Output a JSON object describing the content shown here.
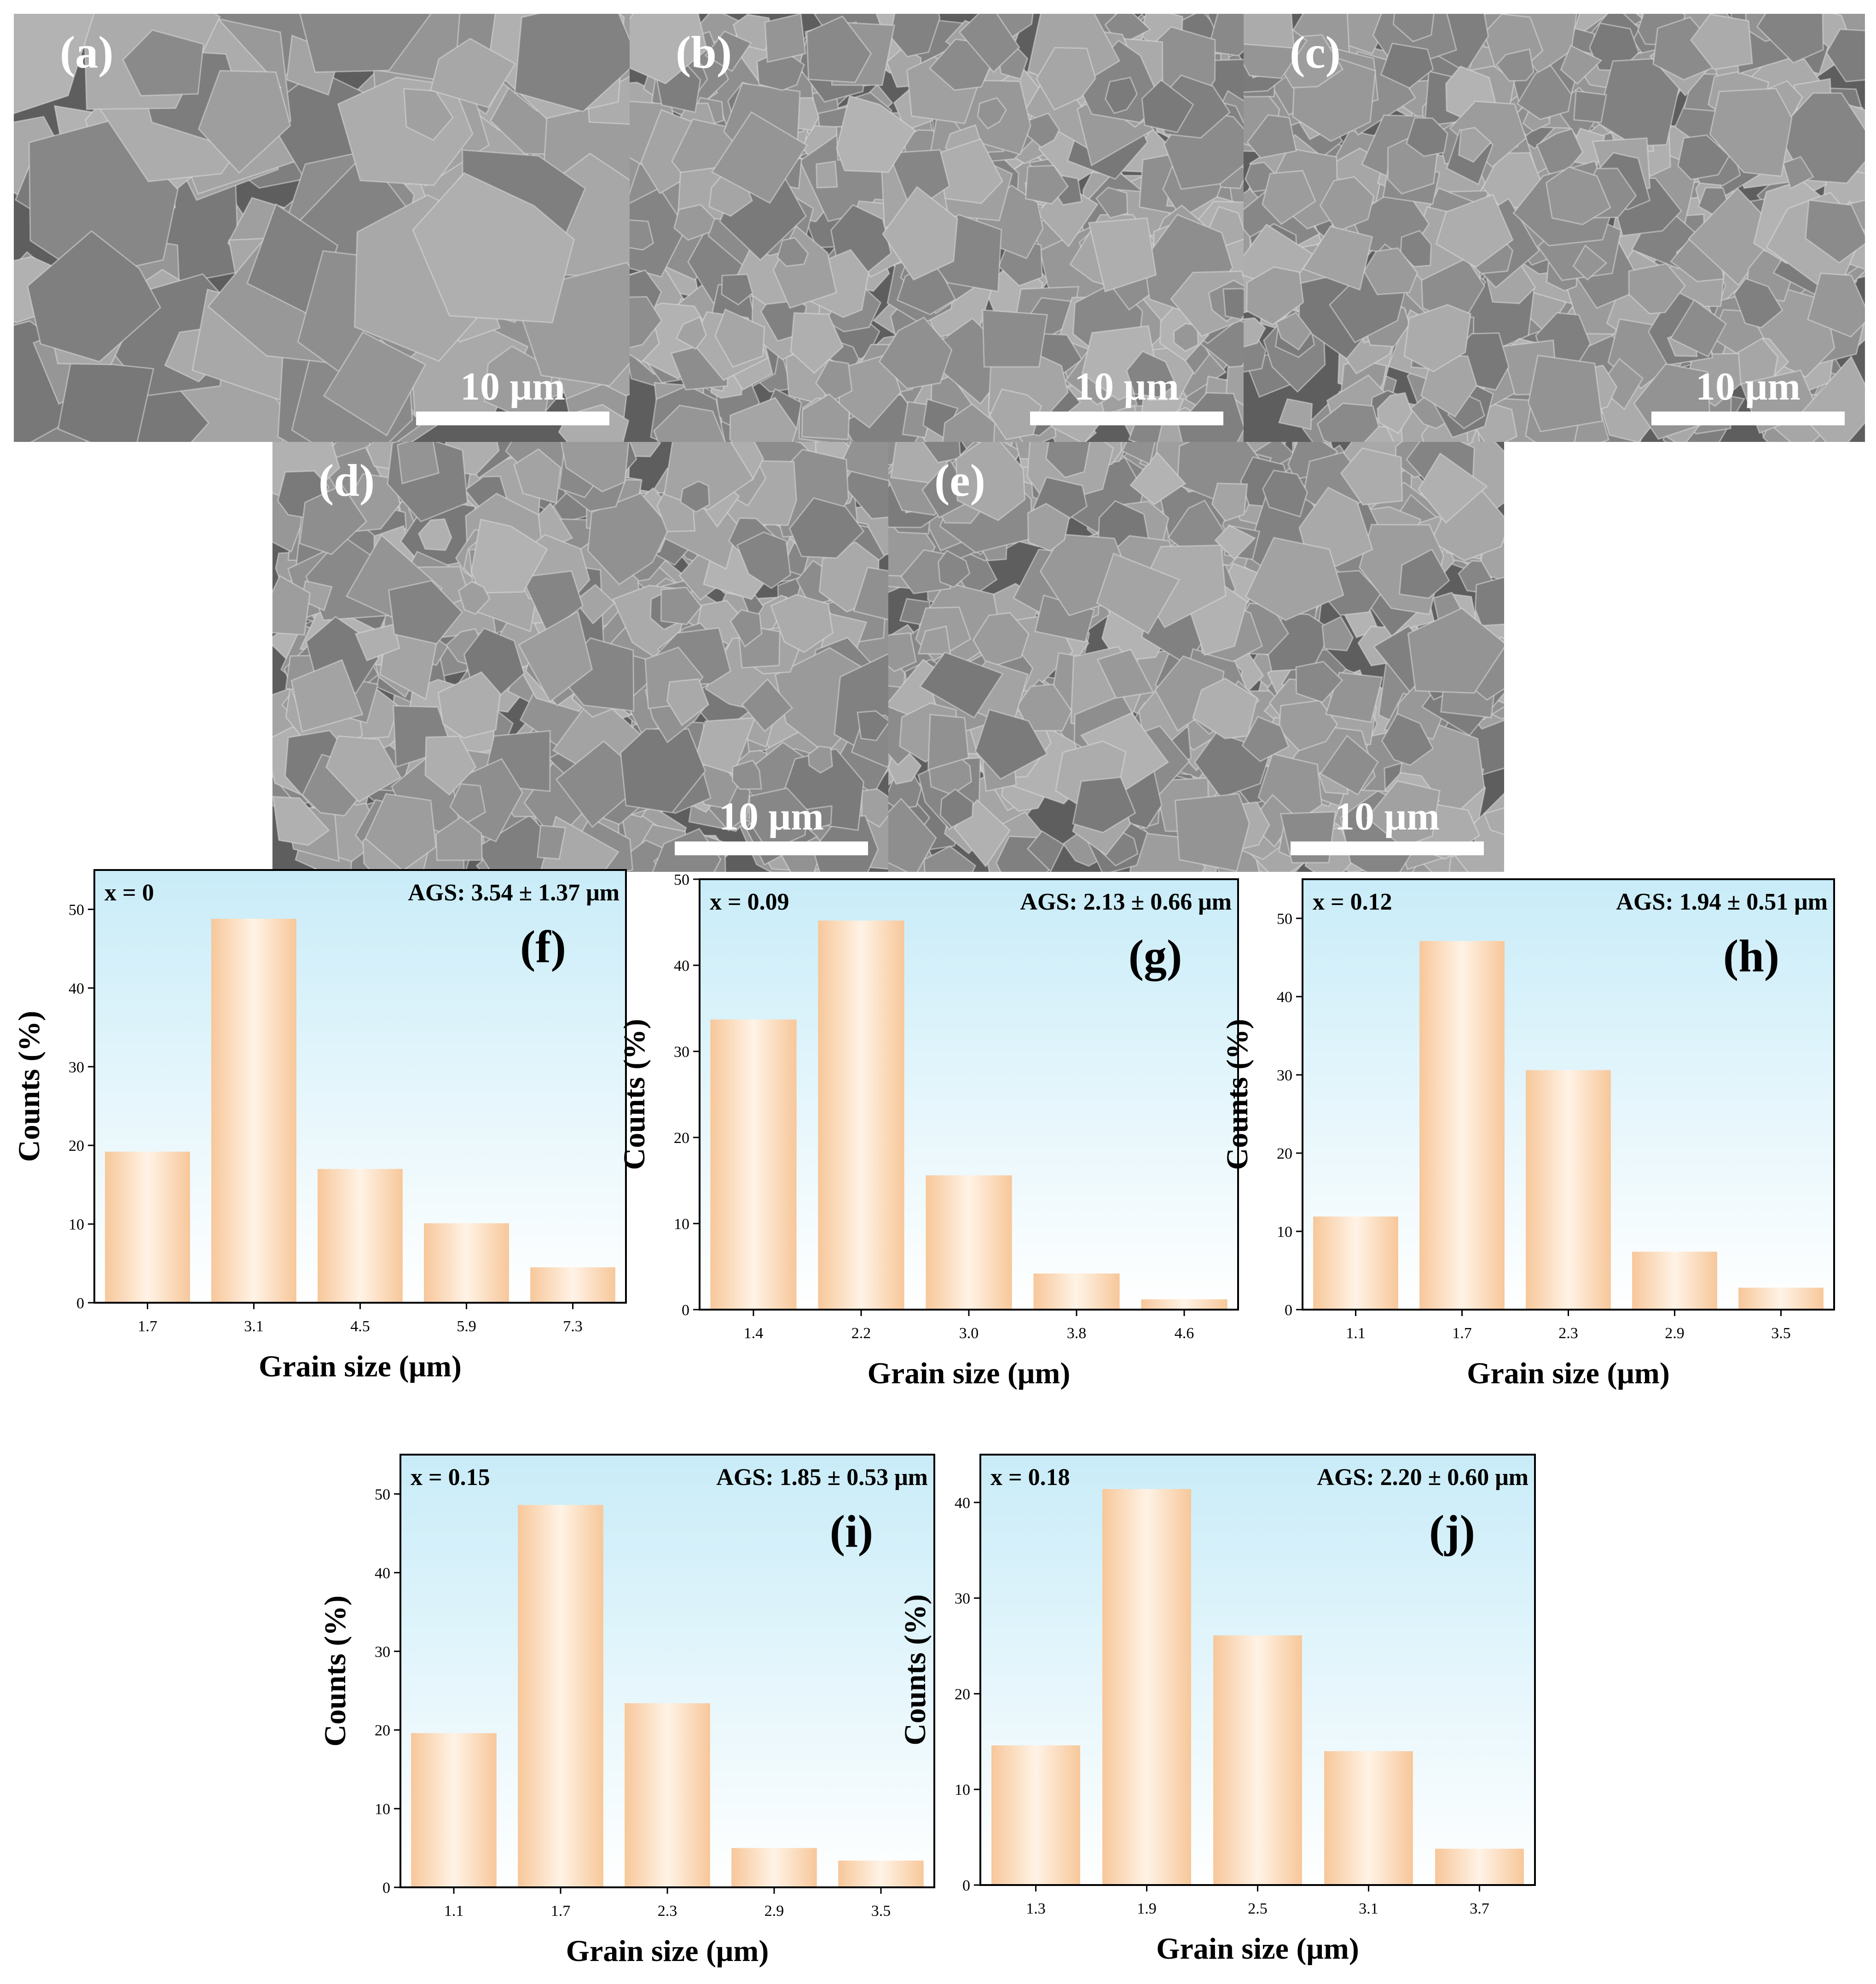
{
  "sem_panels": [
    {
      "label": "(a)",
      "scale": "10 μm"
    },
    {
      "label": "(b)",
      "scale": "10 μm"
    },
    {
      "label": "(c)",
      "scale": "10 μm"
    },
    {
      "label": "(d)",
      "scale": "10 μm"
    },
    {
      "label": "(e)",
      "scale": "10 μm"
    }
  ],
  "colors": {
    "bar_fill": "#fde2c6",
    "bar_edge": "#f7c79a",
    "plot_bg_top": "#c9ecf8",
    "plot_bg_bottom": "#ffffff",
    "axis": "#000000",
    "sem_gray": "#7b7b7b"
  },
  "chart_data": [
    {
      "type": "bar",
      "panel": "(f)",
      "composition": "x = 0",
      "ags": "AGS: 3.54 ± 1.37 μm",
      "xlabel": "Grain size (μm)",
      "ylabel": "Counts (%)",
      "categories": [
        "1.7",
        "3.1",
        "4.5",
        "5.9",
        "7.3"
      ],
      "values": [
        19.2,
        48.8,
        17.0,
        10.1,
        4.5
      ],
      "ylim": [
        0,
        55
      ],
      "yticks": [
        0,
        10,
        20,
        30,
        40,
        50
      ]
    },
    {
      "type": "bar",
      "panel": "(g)",
      "composition": "x = 0.09",
      "ags": "AGS: 2.13 ± 0.66 μm",
      "xlabel": "Grain size (μm)",
      "ylabel": "Counts (%)",
      "categories": [
        "1.4",
        "2.2",
        "3.0",
        "3.8",
        "4.6"
      ],
      "values": [
        33.7,
        45.2,
        15.6,
        4.2,
        1.2
      ],
      "ylim": [
        0,
        50
      ],
      "yticks": [
        0,
        10,
        20,
        30,
        40,
        50
      ]
    },
    {
      "type": "bar",
      "panel": "(h)",
      "composition": "x = 0.12",
      "ags": "AGS: 1.94 ± 0.51 μm",
      "xlabel": "Grain size (μm)",
      "ylabel": "Counts (%)",
      "categories": [
        "1.1",
        "1.7",
        "2.3",
        "2.9",
        "3.5"
      ],
      "values": [
        11.9,
        47.1,
        30.6,
        7.4,
        2.8
      ],
      "ylim": [
        0,
        55
      ],
      "yticks": [
        0,
        10,
        20,
        30,
        40,
        50
      ]
    },
    {
      "type": "bar",
      "panel": "(i)",
      "composition": "x = 0.15",
      "ags": "AGS: 1.85 ± 0.53 μm",
      "xlabel": "Grain size (μm)",
      "ylabel": "Counts (%)",
      "categories": [
        "1.1",
        "1.7",
        "2.3",
        "2.9",
        "3.5"
      ],
      "values": [
        19.6,
        48.6,
        23.4,
        5.0,
        3.4
      ],
      "ylim": [
        0,
        55
      ],
      "yticks": [
        0,
        10,
        20,
        30,
        40,
        50
      ]
    },
    {
      "type": "bar",
      "panel": "(j)",
      "composition": "x = 0.18",
      "ags": "AGS: 2.20 ± 0.60 μm",
      "xlabel": "Grain size (μm)",
      "ylabel": "Counts (%)",
      "categories": [
        "1.3",
        "1.9",
        "2.5",
        "3.1",
        "3.7"
      ],
      "values": [
        14.6,
        41.4,
        26.1,
        14.0,
        3.8
      ],
      "ylim": [
        0,
        45
      ],
      "yticks": [
        0,
        10,
        20,
        30,
        40
      ]
    }
  ]
}
